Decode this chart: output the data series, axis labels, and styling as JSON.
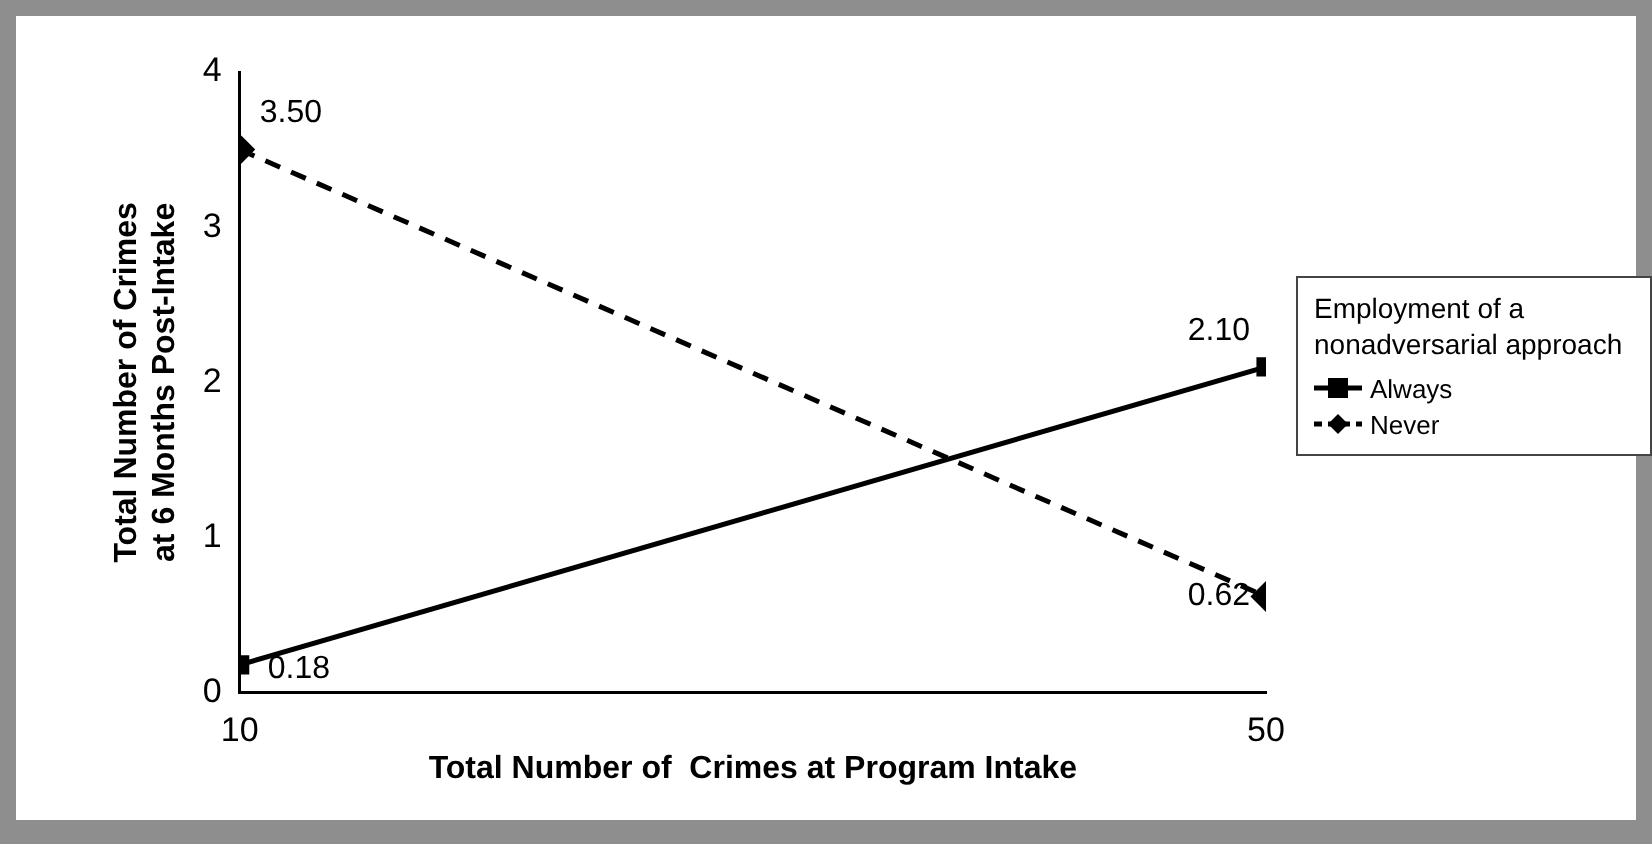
{
  "chart_data": {
    "type": "line",
    "xlabel": "Total Number of  Crimes at Program Intake",
    "ylabel": "Total Number of Crimes at 6 Months Post-Intake",
    "legend_title": "Employment of a nonadversarial approach",
    "x": [
      10,
      50
    ],
    "series": [
      {
        "name": "Always",
        "color": "#000000",
        "values": [
          0.18,
          2.1
        ],
        "marker": "square",
        "line_style": "solid",
        "value_labels": [
          "0.18",
          "2.10"
        ]
      },
      {
        "name": "Never",
        "color": "#000000",
        "values": [
          3.5,
          0.62
        ],
        "marker": "diamond",
        "line_style": "dashed",
        "value_labels": [
          "3.50",
          "0.62"
        ]
      }
    ],
    "xlim": [
      10,
      50
    ],
    "xticks": [
      10,
      50
    ],
    "ylim": [
      0,
      4
    ],
    "yticks": [
      0,
      1,
      2,
      3,
      4
    ],
    "grid": false,
    "legend": "right",
    "data_labels": true
  }
}
